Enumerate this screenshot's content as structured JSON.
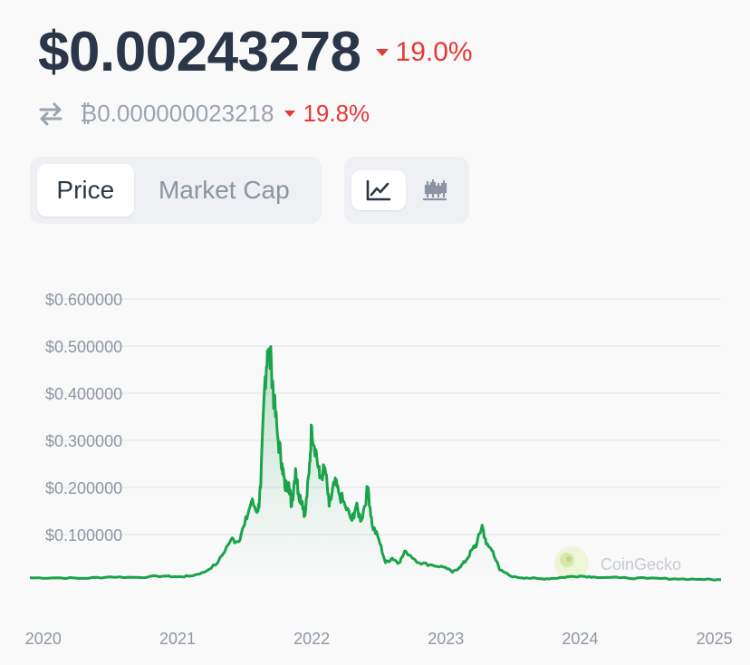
{
  "header": {
    "price": "$0.00243278",
    "change_24h": "19.0%",
    "change_direction": "down",
    "btc_price": "₿0.000000023218",
    "btc_change": "19.8%"
  },
  "tabs": {
    "price_label": "Price",
    "market_cap_label": "Market Cap",
    "active": "Price"
  },
  "view_toggle": {
    "line_icon": "line-chart-icon",
    "candle_icon": "candlestick-chart-icon",
    "active": "line"
  },
  "colors": {
    "line": "#1aa34a",
    "down": "#e53935",
    "grid": "#e8eaee",
    "axis_text": "#8e97a4"
  },
  "watermark": {
    "text": "CoinGecko"
  },
  "chart_data": {
    "type": "area",
    "title": "",
    "xlabel": "",
    "ylabel": "",
    "ylim": [
      0,
      0.6
    ],
    "y_ticks": [
      "$0.600000",
      "$0.500000",
      "$0.400000",
      "$0.300000",
      "$0.200000",
      "$0.100000"
    ],
    "y_tick_values": [
      0.6,
      0.5,
      0.4,
      0.3,
      0.2,
      0.1
    ],
    "x_ticks": [
      "2020",
      "2021",
      "2022",
      "2023",
      "2024",
      "2025"
    ],
    "x_tick_values": [
      2020.0,
      2021.0,
      2022.0,
      2023.0,
      2024.0,
      2025.0
    ],
    "xlim": [
      2019.9,
      2025.05
    ],
    "grid": true,
    "series": [
      {
        "color": "#1aa34a",
        "x": [
          2019.9,
          2020.1,
          2020.3,
          2020.5,
          2020.7,
          2020.9,
          2021.0,
          2021.1,
          2021.2,
          2021.3,
          2021.4,
          2021.45,
          2021.5,
          2021.55,
          2021.6,
          2021.62,
          2021.65,
          2021.67,
          2021.7,
          2021.72,
          2021.75,
          2021.78,
          2021.8,
          2021.83,
          2021.85,
          2021.88,
          2021.9,
          2021.93,
          2021.95,
          2021.98,
          2022.0,
          2022.03,
          2022.06,
          2022.1,
          2022.13,
          2022.17,
          2022.2,
          2022.25,
          2022.3,
          2022.33,
          2022.37,
          2022.42,
          2022.45,
          2022.5,
          2022.55,
          2022.6,
          2022.65,
          2022.7,
          2022.8,
          2022.9,
          2023.0,
          2023.05,
          2023.1,
          2023.15,
          2023.2,
          2023.23,
          2023.27,
          2023.3,
          2023.35,
          2023.4,
          2023.5,
          2023.6,
          2023.7,
          2023.8,
          2023.9,
          2024.0,
          2024.1,
          2024.3,
          2024.5,
          2024.7,
          2024.9,
          2025.05
        ],
        "y": [
          0.008,
          0.008,
          0.007,
          0.01,
          0.009,
          0.012,
          0.01,
          0.012,
          0.02,
          0.04,
          0.09,
          0.085,
          0.12,
          0.17,
          0.15,
          0.2,
          0.42,
          0.49,
          0.46,
          0.38,
          0.3,
          0.25,
          0.2,
          0.21,
          0.16,
          0.24,
          0.19,
          0.17,
          0.14,
          0.23,
          0.33,
          0.28,
          0.22,
          0.24,
          0.16,
          0.21,
          0.19,
          0.16,
          0.13,
          0.16,
          0.13,
          0.2,
          0.12,
          0.09,
          0.04,
          0.05,
          0.04,
          0.065,
          0.04,
          0.035,
          0.03,
          0.02,
          0.03,
          0.045,
          0.07,
          0.08,
          0.12,
          0.08,
          0.065,
          0.025,
          0.01,
          0.008,
          0.006,
          0.007,
          0.01,
          0.012,
          0.01,
          0.008,
          0.007,
          0.006,
          0.005,
          0.004
        ]
      }
    ]
  }
}
